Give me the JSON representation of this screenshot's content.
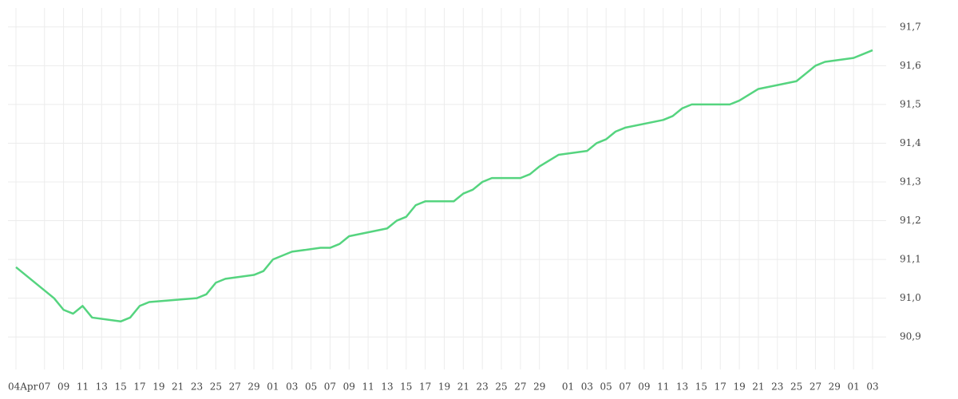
{
  "chart_data": {
    "type": "line",
    "x": [
      "Apr 04",
      "Apr 08",
      "Apr 09",
      "Apr 10",
      "Apr 11",
      "Apr 12",
      "Apr 15",
      "Apr 16",
      "Apr 17",
      "Apr 18",
      "Apr 23",
      "Apr 24",
      "Apr 25",
      "Apr 26",
      "Apr 29",
      "Apr 30",
      "May 01",
      "May 03",
      "May 06",
      "May 07",
      "May 08",
      "May 09",
      "May 13",
      "May 14",
      "May 15",
      "May 16",
      "May 17",
      "May 20",
      "May 21",
      "May 22",
      "May 23",
      "May 24",
      "May 27",
      "May 28",
      "May 29",
      "May 31",
      "Jun 03",
      "Jun 04",
      "Jun 05",
      "Jun 06",
      "Jun 07",
      "Jun 11",
      "Jun 12",
      "Jun 13",
      "Jun 14",
      "Jun 17",
      "Jun 18",
      "Jun 19",
      "Jun 21",
      "Jun 25",
      "Jun 26",
      "Jun 27",
      "Jun 28",
      "Jul 01",
      "Jul 02",
      "Jul 03"
    ],
    "series": [
      {
        "color": "#55d47f",
        "values": [
          91.08,
          91.0,
          90.97,
          90.96,
          90.98,
          90.95,
          90.94,
          90.95,
          90.98,
          90.99,
          91.0,
          91.01,
          91.04,
          91.05,
          91.06,
          91.07,
          91.1,
          91.12,
          91.13,
          91.13,
          91.14,
          91.16,
          91.18,
          91.2,
          91.21,
          91.24,
          91.25,
          91.25,
          91.27,
          91.28,
          91.3,
          91.31,
          91.31,
          91.32,
          91.34,
          91.37,
          91.38,
          91.4,
          91.41,
          91.43,
          91.44,
          91.46,
          91.47,
          91.49,
          91.5,
          91.5,
          91.5,
          91.51,
          91.54,
          91.56,
          91.58,
          91.6,
          91.61,
          91.62,
          91.63,
          91.64
        ]
      }
    ],
    "xticks": [
      {
        "value": "Apr 04",
        "label": "04Apr"
      },
      {
        "value": "Apr 07",
        "label": "07"
      },
      {
        "value": "Apr 09",
        "label": "09"
      },
      {
        "value": "Apr 11",
        "label": "11"
      },
      {
        "value": "Apr 13",
        "label": "13"
      },
      {
        "value": "Apr 15",
        "label": "15"
      },
      {
        "value": "Apr 17",
        "label": "17"
      },
      {
        "value": "Apr 19",
        "label": "19"
      },
      {
        "value": "Apr 21",
        "label": "21"
      },
      {
        "value": "Apr 23",
        "label": "23"
      },
      {
        "value": "Apr 25",
        "label": "25"
      },
      {
        "value": "Apr 27",
        "label": "27"
      },
      {
        "value": "Apr 29",
        "label": "29"
      },
      {
        "value": "May 01",
        "label": "01"
      },
      {
        "value": "May 03",
        "label": "03"
      },
      {
        "value": "May 05",
        "label": "05"
      },
      {
        "value": "May 07",
        "label": "07"
      },
      {
        "value": "May 09",
        "label": "09"
      },
      {
        "value": "May 11",
        "label": "11"
      },
      {
        "value": "May 13",
        "label": "13"
      },
      {
        "value": "May 15",
        "label": "15"
      },
      {
        "value": "May 17",
        "label": "17"
      },
      {
        "value": "May 19",
        "label": "19"
      },
      {
        "value": "May 21",
        "label": "21"
      },
      {
        "value": "May 23",
        "label": "23"
      },
      {
        "value": "May 25",
        "label": "25"
      },
      {
        "value": "May 27",
        "label": "27"
      },
      {
        "value": "May 29",
        "label": "29"
      },
      {
        "value": "Jun 01",
        "label": "01"
      },
      {
        "value": "Jun 03",
        "label": "03"
      },
      {
        "value": "Jun 05",
        "label": "05"
      },
      {
        "value": "Jun 07",
        "label": "07"
      },
      {
        "value": "Jun 09",
        "label": "09"
      },
      {
        "value": "Jun 11",
        "label": "11"
      },
      {
        "value": "Jun 13",
        "label": "13"
      },
      {
        "value": "Jun 15",
        "label": "15"
      },
      {
        "value": "Jun 17",
        "label": "17"
      },
      {
        "value": "Jun 19",
        "label": "19"
      },
      {
        "value": "Jun 21",
        "label": "21"
      },
      {
        "value": "Jun 23",
        "label": "23"
      },
      {
        "value": "Jun 25",
        "label": "25"
      },
      {
        "value": "Jun 27",
        "label": "27"
      },
      {
        "value": "Jun 29",
        "label": "29"
      },
      {
        "value": "Jul 01",
        "label": "01"
      },
      {
        "value": "Jul 03",
        "label": "03"
      }
    ],
    "ylim": [
      90.816,
      91.749
    ],
    "yticks": [
      {
        "value": 90.9,
        "label": "90,9"
      },
      {
        "value": 91.0,
        "label": "91,0"
      },
      {
        "value": 91.1,
        "label": "91,1"
      },
      {
        "value": 91.2,
        "label": "91,2"
      },
      {
        "value": 91.3,
        "label": "91,3"
      },
      {
        "value": 91.4,
        "label": "91,4"
      },
      {
        "value": 91.5,
        "label": "91,5"
      },
      {
        "value": 91.6,
        "label": "91,6"
      },
      {
        "value": 91.7,
        "label": "91,7"
      }
    ],
    "grid": true
  }
}
